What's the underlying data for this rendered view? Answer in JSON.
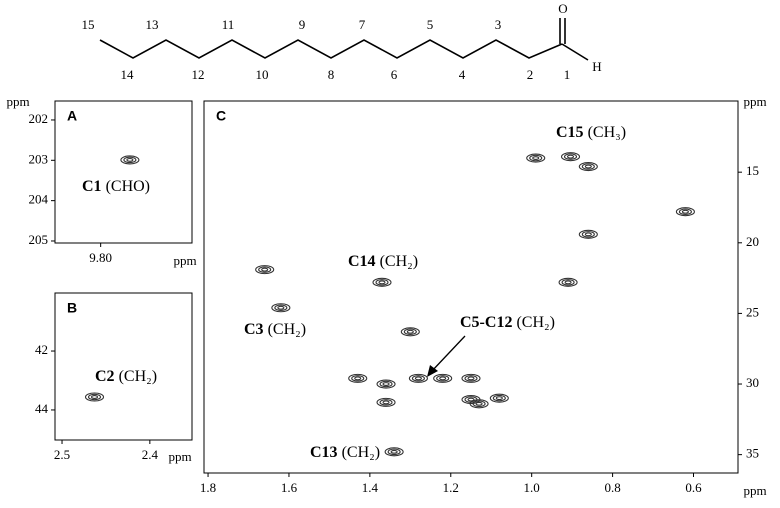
{
  "structure": {
    "upper_labels": [
      "15",
      "13",
      "11",
      "9",
      "7",
      "5",
      "3"
    ],
    "lower_labels": [
      "14",
      "12",
      "10",
      "8",
      "6",
      "4",
      "2",
      "1"
    ],
    "oxygen": "O",
    "hydrogen": "H"
  },
  "chart_data": [
    {
      "type": "contour",
      "panel": "A",
      "x_label": "ppm",
      "y_label": "ppm",
      "color": "#333333",
      "xlim": [
        9.85,
        9.7
      ],
      "ylim": [
        201.53,
        205.05
      ],
      "xticks": [
        {
          "value": 9.8,
          "label": "9.80"
        }
      ],
      "yticks": [
        202,
        203,
        204,
        205
      ],
      "x": [
        9.768
      ],
      "y": [
        202.99
      ],
      "annotations": [
        {
          "bold": "C1",
          "text": "(CHO)"
        }
      ]
    },
    {
      "type": "contour",
      "panel": "B",
      "x_label": "ppm",
      "color": "#333333",
      "xlim": [
        2.508,
        2.352
      ],
      "ylim": [
        40.03,
        45.02
      ],
      "xticks": [
        2.5,
        2.4
      ],
      "yticks": [
        42,
        44
      ],
      "x": [
        2.463
      ],
      "y": [
        43.56
      ],
      "annotations": [
        {
          "bold": "C2",
          "text": "(CH₂)"
        }
      ]
    },
    {
      "type": "contour",
      "panel": "C",
      "x_label": "ppm",
      "y_label": "ppm",
      "color": "#333333",
      "xlim": [
        1.81,
        0.49
      ],
      "ylim": [
        9.96,
        36.3
      ],
      "xticks": [
        1.8,
        1.6,
        1.4,
        1.2,
        {
          "value": 1,
          "label": "1.0"
        },
        0.8,
        0.6
      ],
      "yticks": [
        15,
        20,
        25,
        30,
        35
      ],
      "x": [
        0.904,
        0.99,
        0.86,
        0.62,
        0.86,
        0.91,
        1.66,
        1.37,
        1.62,
        1.3,
        1.28,
        1.43,
        1.36,
        1.15,
        1.15,
        1.13,
        1.08,
        1.34,
        1.22,
        1.36
      ],
      "y": [
        13.9,
        14.0,
        14.6,
        17.8,
        19.4,
        22.8,
        21.9,
        22.8,
        24.6,
        26.3,
        29.6,
        29.6,
        30.0,
        29.6,
        31.1,
        31.4,
        31.0,
        34.8,
        29.6,
        31.3
      ],
      "annotations": [
        {
          "bold": "C15",
          "text": "(CH₃)"
        },
        {
          "bold": "C14",
          "text": "(CH₂)"
        },
        {
          "bold": "C3",
          "text": "(CH₂)"
        },
        {
          "bold": "C5-C12",
          "text": "(CH₂)"
        },
        {
          "bold": "C13",
          "text": "(CH₂)"
        }
      ]
    }
  ]
}
